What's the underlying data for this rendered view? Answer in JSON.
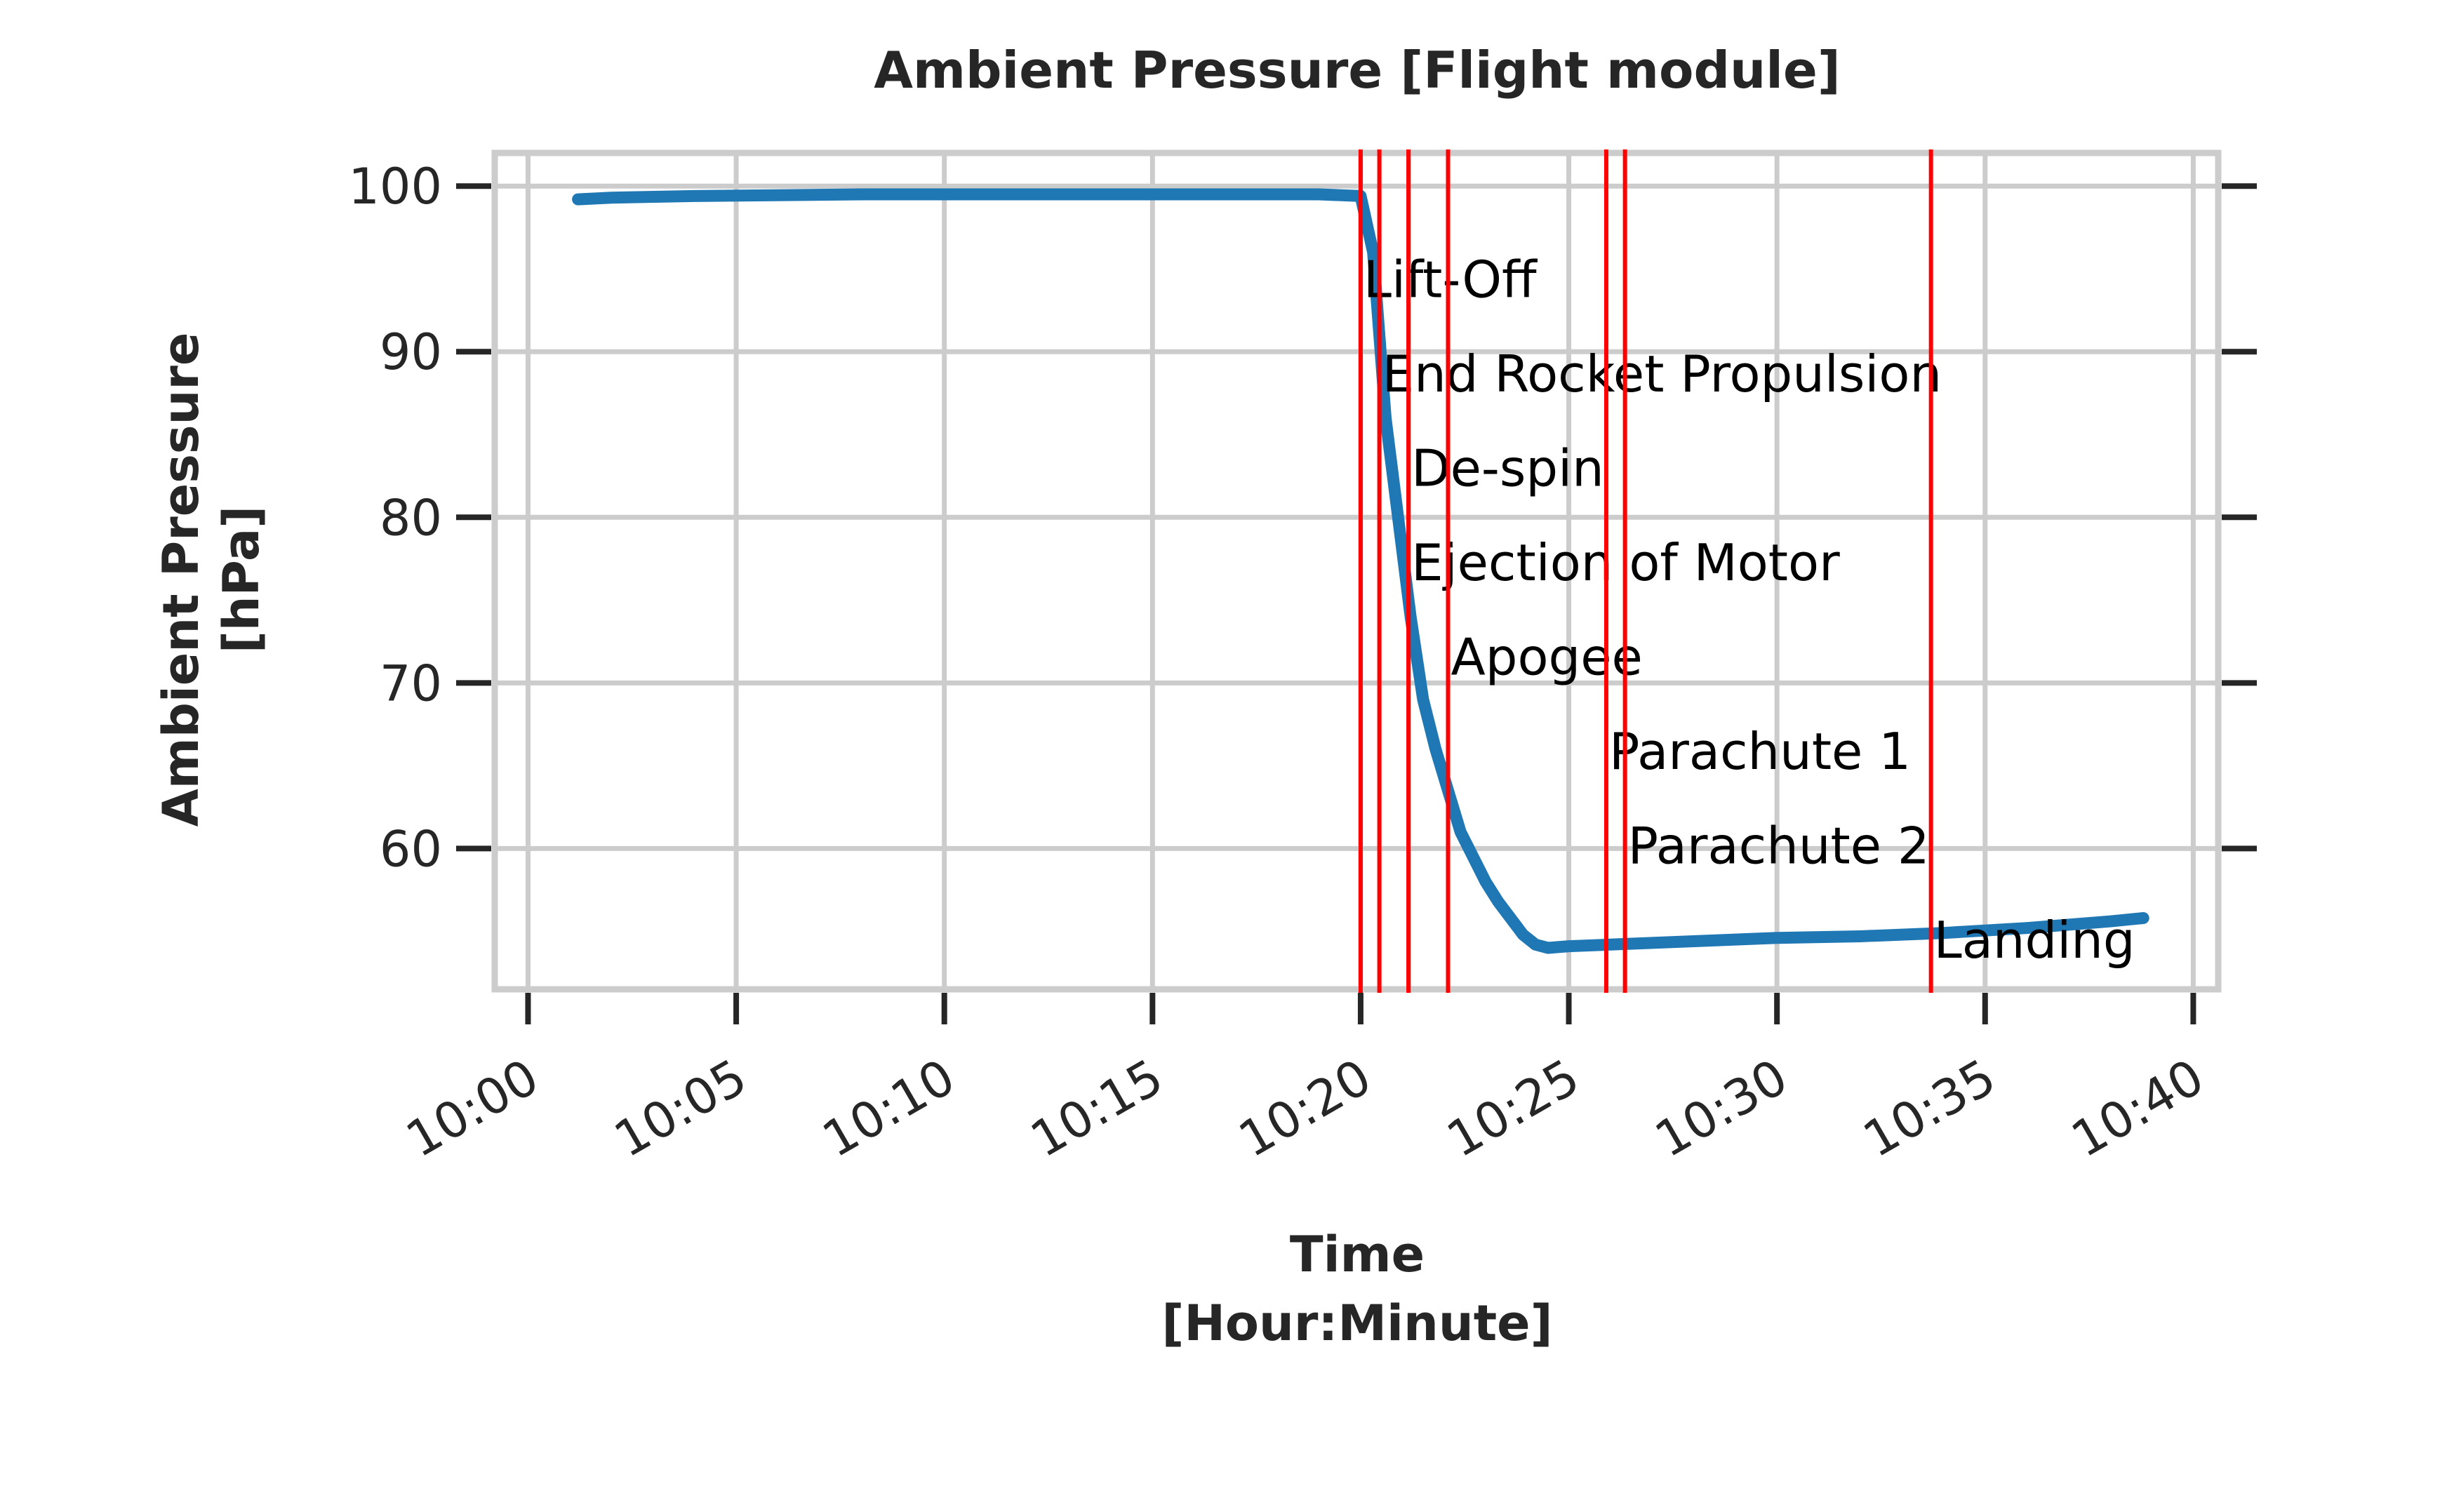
{
  "chart_data": {
    "type": "line",
    "title": "Ambient Pressure [Flight module]",
    "xlabel": [
      "Time",
      "[Hour:Minute]"
    ],
    "ylabel": [
      "Ambient Pressure",
      "[hPa]"
    ],
    "xlim": [
      "09:59:12",
      "10:40:36"
    ],
    "ylim": [
      51.5,
      102
    ],
    "x_ticks": [
      "10:00",
      "10:05",
      "10:10",
      "10:15",
      "10:20",
      "10:25",
      "10:30",
      "10:35",
      "10:40"
    ],
    "y_ticks": [
      60,
      70,
      80,
      90,
      100
    ],
    "grid": true,
    "line_color": "#1f77b4",
    "event_color": "#ff0000",
    "series": [
      {
        "x": [
          "10:01:12",
          "10:02:00",
          "10:04:00",
          "10:08:00",
          "10:12:00",
          "10:16:00",
          "10:19:00",
          "10:20:00",
          "10:20:18",
          "10:20:36",
          "10:20:54",
          "10:21:12",
          "10:21:30",
          "10:21:48",
          "10:22:06",
          "10:22:24",
          "10:22:42",
          "10:23:00",
          "10:23:18",
          "10:23:36",
          "10:23:54",
          "10:24:12",
          "10:24:30",
          "10:25:00",
          "10:26:00",
          "10:28:00",
          "10:30:00",
          "10:32:00",
          "10:34:00",
          "10:36:00",
          "10:38:00",
          "10:38:48"
        ],
        "y": [
          99.2,
          99.3,
          99.4,
          99.5,
          99.5,
          99.5,
          99.5,
          99.4,
          96.0,
          86.0,
          80.0,
          74.0,
          69.0,
          66.0,
          63.5,
          61.0,
          59.5,
          58.0,
          56.8,
          55.8,
          54.8,
          54.2,
          54.0,
          54.1,
          54.2,
          54.4,
          54.6,
          54.7,
          54.9,
          55.2,
          55.6,
          55.8
        ]
      }
    ],
    "events": [
      {
        "time": "10:20:00",
        "label": "Lift-Off",
        "label_y": 94.4
      },
      {
        "time": "10:20:27",
        "label": "End Rocket Propulsion",
        "label_y": 88.7
      },
      {
        "time": "10:21:09",
        "label": "De-spin",
        "label_y": 83.0
      },
      {
        "time": "10:21:09",
        "label": "Ejection of Motor",
        "label_y": 77.3
      },
      {
        "time": "10:22:06",
        "label": "Apogee",
        "label_y": 71.6
      },
      {
        "time": "10:25:54",
        "label": "Parachute 1",
        "label_y": 65.9
      },
      {
        "time": "10:26:21",
        "label": "Parachute 2",
        "label_y": 60.2
      },
      {
        "time": "10:33:42",
        "label": "Landing",
        "label_y": 54.5
      }
    ]
  }
}
